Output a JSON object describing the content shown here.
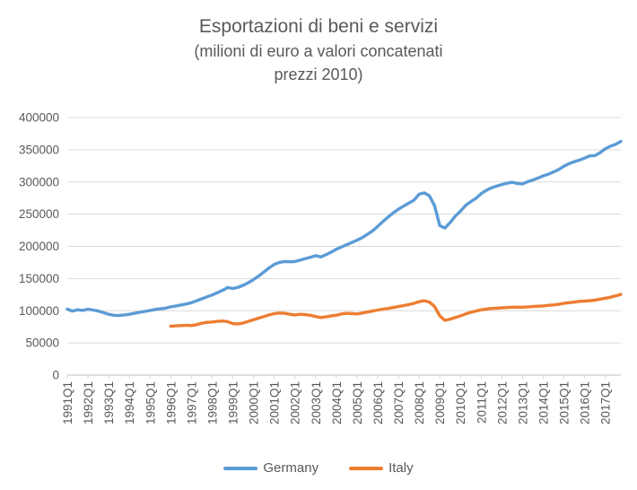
{
  "header": {
    "title": "Esportazioni di beni e servizi",
    "subtitle_line1": "(milioni di euro a valori concatenati",
    "subtitle_line2": "prezzi 2010)"
  },
  "colors": {
    "germany": "#5B9BD5",
    "italy": "#ED7D31",
    "text": "#595959",
    "gridline": "#D9D9D9",
    "axis_line": "#BFBFBF"
  },
  "legend": [
    {
      "label": "Germany",
      "color": "#5B9BD5"
    },
    {
      "label": "Italy",
      "color": "#ED7D31"
    }
  ],
  "chart_data": {
    "type": "line",
    "title": "Esportazioni di beni e servizi (milioni di euro a valori concatenati prezzi 2010)",
    "grid": true,
    "legend_position": "bottom",
    "y_axis": {
      "min": 0,
      "max": 400000,
      "step": 50000,
      "tick_labels": [
        "0",
        "50000",
        "100000",
        "150000",
        "200000",
        "250000",
        "300000",
        "350000",
        "400000"
      ]
    },
    "x_axis": {
      "tick_labels": [
        "1991Q1",
        "1992Q1",
        "1993Q1",
        "1994Q1",
        "1995Q1",
        "1996Q1",
        "1997Q1",
        "1998Q1",
        "1999Q1",
        "2000Q1",
        "2001Q1",
        "2002Q1",
        "2003Q1",
        "2004Q1",
        "2005Q1",
        "2006Q1",
        "2007Q1",
        "2008Q1",
        "2009Q1",
        "2010Q1",
        "2011Q1",
        "2012Q1",
        "2013Q1",
        "2014Q1",
        "2015Q1",
        "2016Q1",
        "2017Q1"
      ],
      "quarters_total": 108,
      "first_quarter": "1991Q1",
      "last_quarter": "2017Q4"
    },
    "series": [
      {
        "name": "Germany",
        "color": "#5B9BD5",
        "start_index": 0,
        "start_quarter": "1991Q1",
        "values": [
          102500,
          99500,
          101500,
          100500,
          102500,
          101000,
          99500,
          97000,
          94500,
          93000,
          92500,
          93500,
          94500,
          96000,
          97500,
          99000,
          100500,
          102000,
          103000,
          104000,
          106000,
          107500,
          109000,
          110500,
          112500,
          115500,
          118500,
          121500,
          124500,
          128000,
          131500,
          136000,
          134500,
          136500,
          139500,
          143500,
          148500,
          154000,
          160000,
          166500,
          172000,
          175000,
          176500,
          176000,
          176500,
          178500,
          181000,
          183000,
          185500,
          183500,
          187000,
          191000,
          195500,
          199000,
          202500,
          206000,
          209500,
          213500,
          218500,
          224000,
          231000,
          238500,
          245500,
          252000,
          257500,
          262500,
          267000,
          271500,
          281000,
          283000,
          278500,
          263000,
          232000,
          228500,
          237000,
          247000,
          254500,
          263500,
          269500,
          274500,
          282000,
          287000,
          291000,
          293500,
          296000,
          298000,
          299500,
          297500,
          297000,
          300500,
          303000,
          306000,
          309500,
          312000,
          315500,
          319500,
          324500,
          328500,
          331500,
          334000,
          337000,
          340500,
          341000,
          345500,
          351500,
          355500,
          358500,
          363000
        ]
      },
      {
        "name": "Italy",
        "color": "#ED7D31",
        "start_index": 20,
        "start_quarter": "1996Q1",
        "values": [
          76000,
          76500,
          77000,
          77500,
          77000,
          78500,
          80500,
          82000,
          82500,
          83500,
          84000,
          83000,
          80000,
          79500,
          81000,
          83500,
          86000,
          88500,
          91000,
          93500,
          95500,
          96500,
          96000,
          94500,
          93500,
          94500,
          94000,
          93000,
          91000,
          89500,
          90500,
          92000,
          93000,
          95000,
          96000,
          95500,
          95000,
          96500,
          98000,
          99500,
          101000,
          102500,
          103500,
          105000,
          106500,
          108000,
          109500,
          111500,
          114000,
          115500,
          113500,
          106500,
          92000,
          85000,
          87000,
          89500,
          92000,
          95000,
          97500,
          99500,
          101500,
          102500,
          103500,
          104000,
          104500,
          105000,
          105500,
          105500,
          105500,
          106000,
          106500,
          107000,
          107500,
          108500,
          109000,
          110000,
          111500,
          112500,
          113500,
          114500,
          115000,
          115500,
          116500,
          118000,
          119500,
          121000,
          123000,
          125500
        ]
      }
    ]
  }
}
